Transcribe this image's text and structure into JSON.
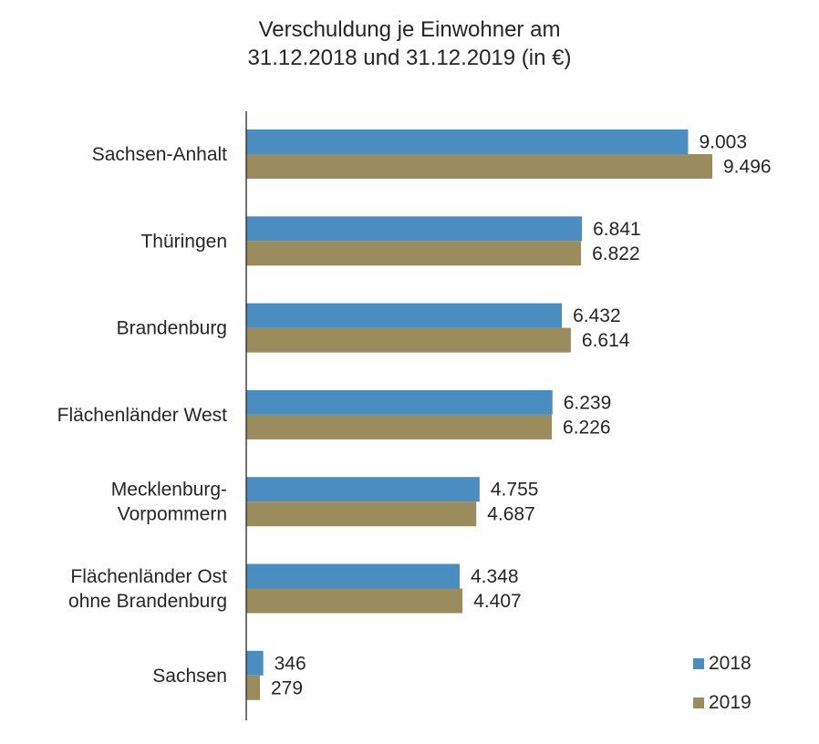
{
  "chart_data": {
    "type": "bar",
    "orientation": "horizontal",
    "title_lines": [
      "Verschuldung je Einwohner am",
      "31.12.2018 und 31.12.2019 (in €)"
    ],
    "categories": [
      [
        "Sachsen-Anhalt"
      ],
      [
        "Thüringen"
      ],
      [
        "Brandenburg"
      ],
      [
        "Flächenländer West"
      ],
      [
        "Mecklenburg-",
        "Vorpommern"
      ],
      [
        "Flächenländer Ost",
        "ohne Brandenburg"
      ],
      [
        "Sachsen"
      ]
    ],
    "series": [
      {
        "name": "2018",
        "color": "#4a8dc1",
        "values": [
          9003,
          6841,
          6432,
          6239,
          4755,
          4348,
          346
        ],
        "labels": [
          "9.003",
          "6.841",
          "6.432",
          "6.239",
          "4.755",
          "4.348",
          "346"
        ]
      },
      {
        "name": "2019",
        "color": "#9b8c5e",
        "values": [
          9496,
          6822,
          6614,
          6226,
          4687,
          4407,
          279
        ],
        "labels": [
          "9.496",
          "6.822",
          "6.614",
          "6.226",
          "4.687",
          "4.407",
          "279"
        ]
      }
    ],
    "xlim": [
      0,
      10000
    ],
    "grid": false,
    "legend_position": "bottom-right"
  }
}
